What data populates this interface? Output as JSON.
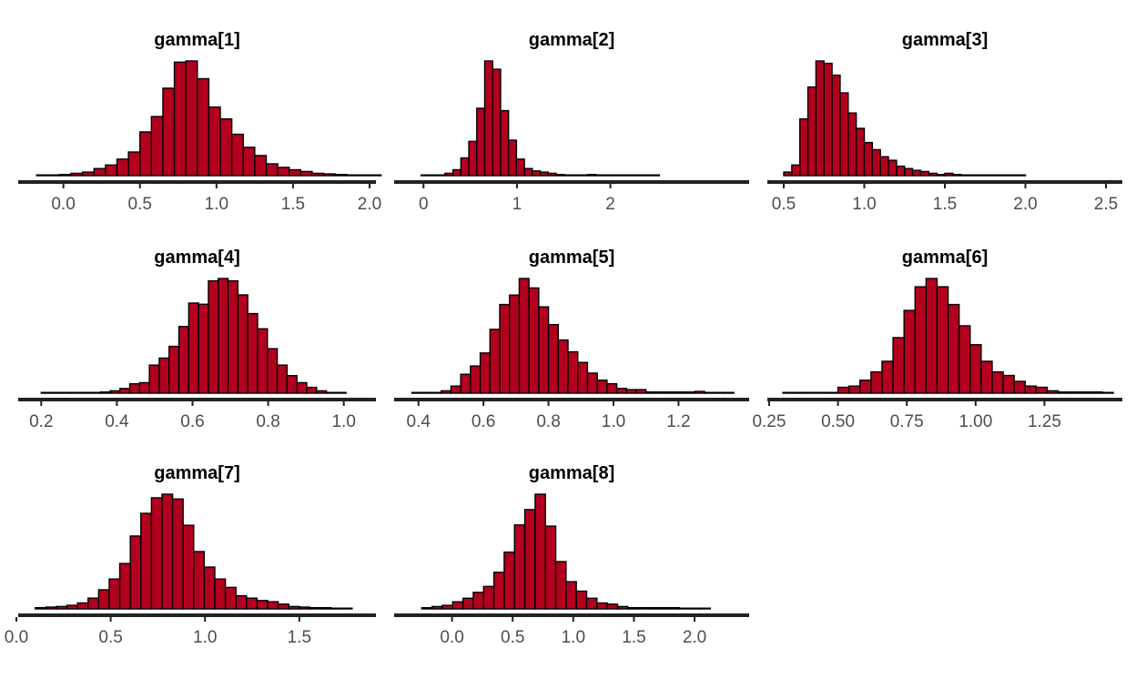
{
  "chart_data": [
    {
      "type": "histogram",
      "title": "gamma[1]",
      "xlim": [
        -0.2,
        2.0
      ],
      "ticks": [
        0.0,
        0.5,
        1.0,
        1.5,
        2.0
      ],
      "tick_labels": [
        "0.0",
        "0.5",
        "1.0",
        "1.5",
        "2.0"
      ],
      "bin_start": -0.175,
      "bin_width": 0.075,
      "values": [
        0.3,
        0.6,
        1,
        2,
        3,
        6,
        9,
        14,
        20,
        37,
        50,
        74,
        96,
        97,
        82,
        58,
        48,
        35,
        24,
        17,
        10,
        7,
        5,
        3.5,
        2,
        1.5,
        1,
        0.5,
        0.4,
        0.3
      ]
    },
    {
      "type": "histogram",
      "title": "gamma[2]",
      "xlim": [
        -0.1,
        2.55
      ],
      "ticks": [
        0,
        1,
        2
      ],
      "tick_labels": [
        "0",
        "1",
        "2"
      ],
      "bin_start": -0.025,
      "bin_width": 0.085,
      "values": [
        0,
        0,
        0.5,
        2,
        5,
        15,
        29,
        57,
        97,
        90,
        55,
        30,
        14,
        6,
        4,
        3,
        2,
        1,
        0.5,
        0.5,
        0.5,
        1,
        0.5,
        0.3,
        0.3,
        0.3,
        0.2,
        0.1,
        0.1,
        0.1
      ]
    },
    {
      "type": "histogram",
      "title": "gamma[3]",
      "xlim": [
        0.5,
        2.5
      ],
      "ticks": [
        0.5,
        1.0,
        1.5,
        2.0,
        2.5
      ],
      "tick_labels": [
        "0.5",
        "1.0",
        "1.5",
        "2.0",
        "2.5"
      ],
      "bin_start": 0.5,
      "bin_width": 0.05,
      "values": [
        3,
        9,
        48,
        75,
        97,
        95,
        85,
        70,
        53,
        40,
        28,
        22,
        16,
        13,
        8,
        6,
        4.5,
        3.5,
        2,
        1,
        2,
        1,
        0.5,
        0.3,
        0.3,
        0.2,
        0.2,
        0.1,
        0.1,
        0.1
      ]
    },
    {
      "type": "histogram",
      "title": "gamma[4]",
      "xlim": [
        0.18,
        1.02
      ],
      "ticks": [
        0.2,
        0.4,
        0.6,
        0.8,
        1.0
      ],
      "tick_labels": [
        "0.2",
        "0.4",
        "0.6",
        "0.8",
        "1.0"
      ],
      "bin_start": 0.2,
      "bin_width": 0.026,
      "values": [
        0.5,
        0.5,
        0.5,
        0.5,
        0.5,
        0.5,
        1,
        2,
        4,
        8,
        9,
        24,
        30,
        40,
        57,
        77,
        76,
        96,
        98,
        96,
        84,
        68,
        55,
        38,
        24,
        15,
        9,
        5,
        2,
        0.5,
        0.3
      ]
    },
    {
      "type": "histogram",
      "title": "gamma[5]",
      "xlim": [
        0.37,
        1.35
      ],
      "ticks": [
        0.4,
        0.6,
        0.8,
        1.0,
        1.2
      ],
      "tick_labels": [
        "0.4",
        "0.6",
        "0.8",
        "1.0",
        "1.2"
      ],
      "bin_start": 0.38,
      "bin_width": 0.03,
      "values": [
        0.5,
        0.5,
        0.5,
        2,
        6,
        16,
        23,
        34,
        54,
        75,
        83,
        97,
        89,
        73,
        58,
        45,
        35,
        26,
        17,
        11,
        8,
        4,
        3,
        3,
        1,
        1,
        1,
        1,
        1,
        1.5,
        0.5,
        0.3,
        0.2
      ]
    },
    {
      "type": "histogram",
      "title": "gamma[6]",
      "xlim": [
        0.27,
        1.47
      ],
      "ticks": [
        0.25,
        0.5,
        0.75,
        1.0,
        1.25
      ],
      "tick_labels": [
        "0.25",
        "0.50",
        "0.75",
        "1.00",
        "1.25"
      ],
      "bin_start": 0.3,
      "bin_width": 0.04,
      "values": [
        0.5,
        0.5,
        0.5,
        0.5,
        0.5,
        5,
        6,
        11,
        18,
        27,
        47,
        70,
        90,
        97,
        90,
        75,
        57,
        41,
        27,
        18,
        15,
        10,
        6,
        5,
        2,
        1,
        1,
        1,
        1,
        0.5
      ]
    },
    {
      "type": "histogram",
      "title": "gamma[7]",
      "xlim": [
        0.0,
        1.8
      ],
      "ticks": [
        0.0,
        0.5,
        1.0,
        1.5
      ],
      "tick_labels": [
        "0.0",
        "0.5",
        "1.0",
        "1.5"
      ],
      "bin_start": 0.1,
      "bin_width": 0.056,
      "values": [
        1,
        1.5,
        2,
        3,
        5,
        9,
        16,
        25,
        38,
        61,
        80,
        93,
        96,
        92,
        70,
        48,
        35,
        25,
        18,
        11,
        9,
        7,
        6,
        4,
        2,
        1.5,
        1,
        1,
        0.5,
        0.5
      ]
    },
    {
      "type": "histogram",
      "title": "gamma[8]",
      "xlim": [
        -0.35,
        2.3
      ],
      "ticks": [
        0.0,
        0.5,
        1.0,
        1.5,
        2.0
      ],
      "tick_labels": [
        "0.0",
        "0.5",
        "1.0",
        "1.5",
        "2.0"
      ],
      "bin_start": -0.25,
      "bin_width": 0.085,
      "values": [
        1,
        2,
        3,
        6,
        9,
        14,
        19,
        31,
        48,
        71,
        84,
        97,
        70,
        40,
        23,
        15,
        9,
        5,
        4,
        2,
        1,
        1,
        1,
        1,
        1,
        0.5,
        0.5,
        0.3
      ]
    }
  ]
}
